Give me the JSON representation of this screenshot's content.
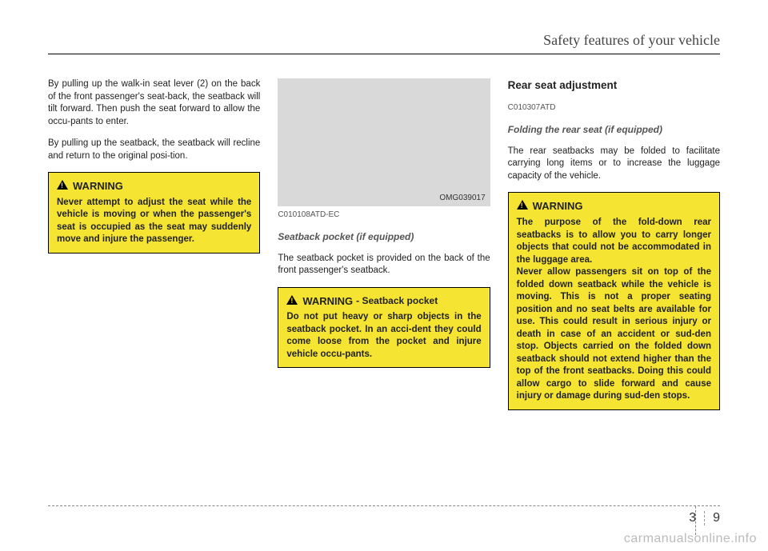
{
  "header": {
    "title": "Safety features of your vehicle"
  },
  "col1": {
    "p1": "By pulling up the walk-in seat lever (2) on the back of the front passenger's seat-back, the seatback will tilt forward. Then push the seat forward to allow the occu-pants to enter.",
    "p2": "By pulling up the seatback, the seatback will recline and return to the original posi-tion.",
    "warning": {
      "title": "WARNING",
      "body": "Never attempt to adjust the seat while the vehicle is moving or when the passenger's seat is occupied as the seat may suddenly move and injure the passenger."
    }
  },
  "col2": {
    "image_code": "OMG039017",
    "image_placeholder_bg": "#d9d9d9",
    "ref": "C010108ATD-EC",
    "subhead": "Seatback pocket (if equipped)",
    "p1": "The seatback pocket is provided on the back of the front passenger's seatback.",
    "warning": {
      "title": "WARNING",
      "sub": "- Seatback pocket",
      "body": "Do not put heavy or sharp objects in the seatback pocket. In an acci-dent they could come loose from the pocket and injure vehicle occu-pants."
    }
  },
  "col3": {
    "section_head": "Rear seat adjustment",
    "ref": "C010307ATD",
    "subhead": "Folding the rear seat (if equipped)",
    "p1": "The rear seatbacks may be folded to facilitate carrying long items or to increase the luggage capacity of the vehicle.",
    "warning": {
      "title": "WARNING",
      "body": "The purpose of the fold-down rear seatbacks is to allow you to carry longer objects that could not be accommodated in the luggage area.\nNever allow passengers sit on top of the folded down seatback while the vehicle is moving. This is not a proper seating position and no seat belts are available for use. This could result in serious injury or death in case of an accident or sud-den stop. Objects carried on the folded down seatback should not extend higher than the top of the front seatbacks. Doing this could allow cargo to slide forward and cause injury or damage during sud-den stops."
    }
  },
  "page_number": {
    "section": "3",
    "page": "9"
  },
  "watermark": "carmanualsonline.info",
  "colors": {
    "warning_bg": "#f6e433",
    "text": "#222222",
    "header_rule": "#000000"
  }
}
